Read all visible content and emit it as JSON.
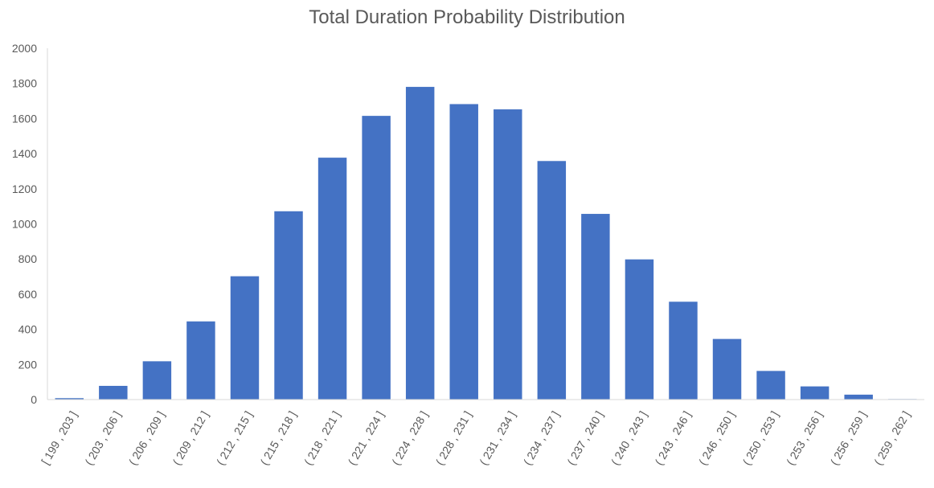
{
  "chart_data": {
    "type": "bar",
    "title": "Total Duration Probability Distribution",
    "xlabel": "",
    "ylabel": "",
    "ylim": [
      0,
      2000
    ],
    "yticks": [
      0,
      200,
      400,
      600,
      800,
      1000,
      1200,
      1400,
      1600,
      1800,
      2000
    ],
    "grid": false,
    "legend": "none",
    "bar_color": "#4472C4",
    "categories": [
      "[ 199 , 203 ]",
      "( 203 , 206 ]",
      "( 206 , 209 ]",
      "( 209 , 212 ]",
      "( 212 , 215 ]",
      "( 215 , 218 ]",
      "( 218 , 221 ]",
      "( 221 , 224 ]",
      "( 224 , 228 ]",
      "( 228 , 231 ]",
      "( 231 , 234 ]",
      "( 234 , 237 ]",
      "( 237 , 240 ]",
      "( 240 , 243 ]",
      "( 243 , 246 ]",
      "( 246 , 250 ]",
      "( 250 , 253 ]",
      "( 253 , 256 ]",
      "( 256 , 259 ]",
      "( 259 , 262 ]"
    ],
    "values": [
      8,
      78,
      218,
      445,
      702,
      1072,
      1377,
      1615,
      1780,
      1682,
      1652,
      1358,
      1057,
      798,
      557,
      345,
      163,
      75,
      28,
      3
    ]
  }
}
